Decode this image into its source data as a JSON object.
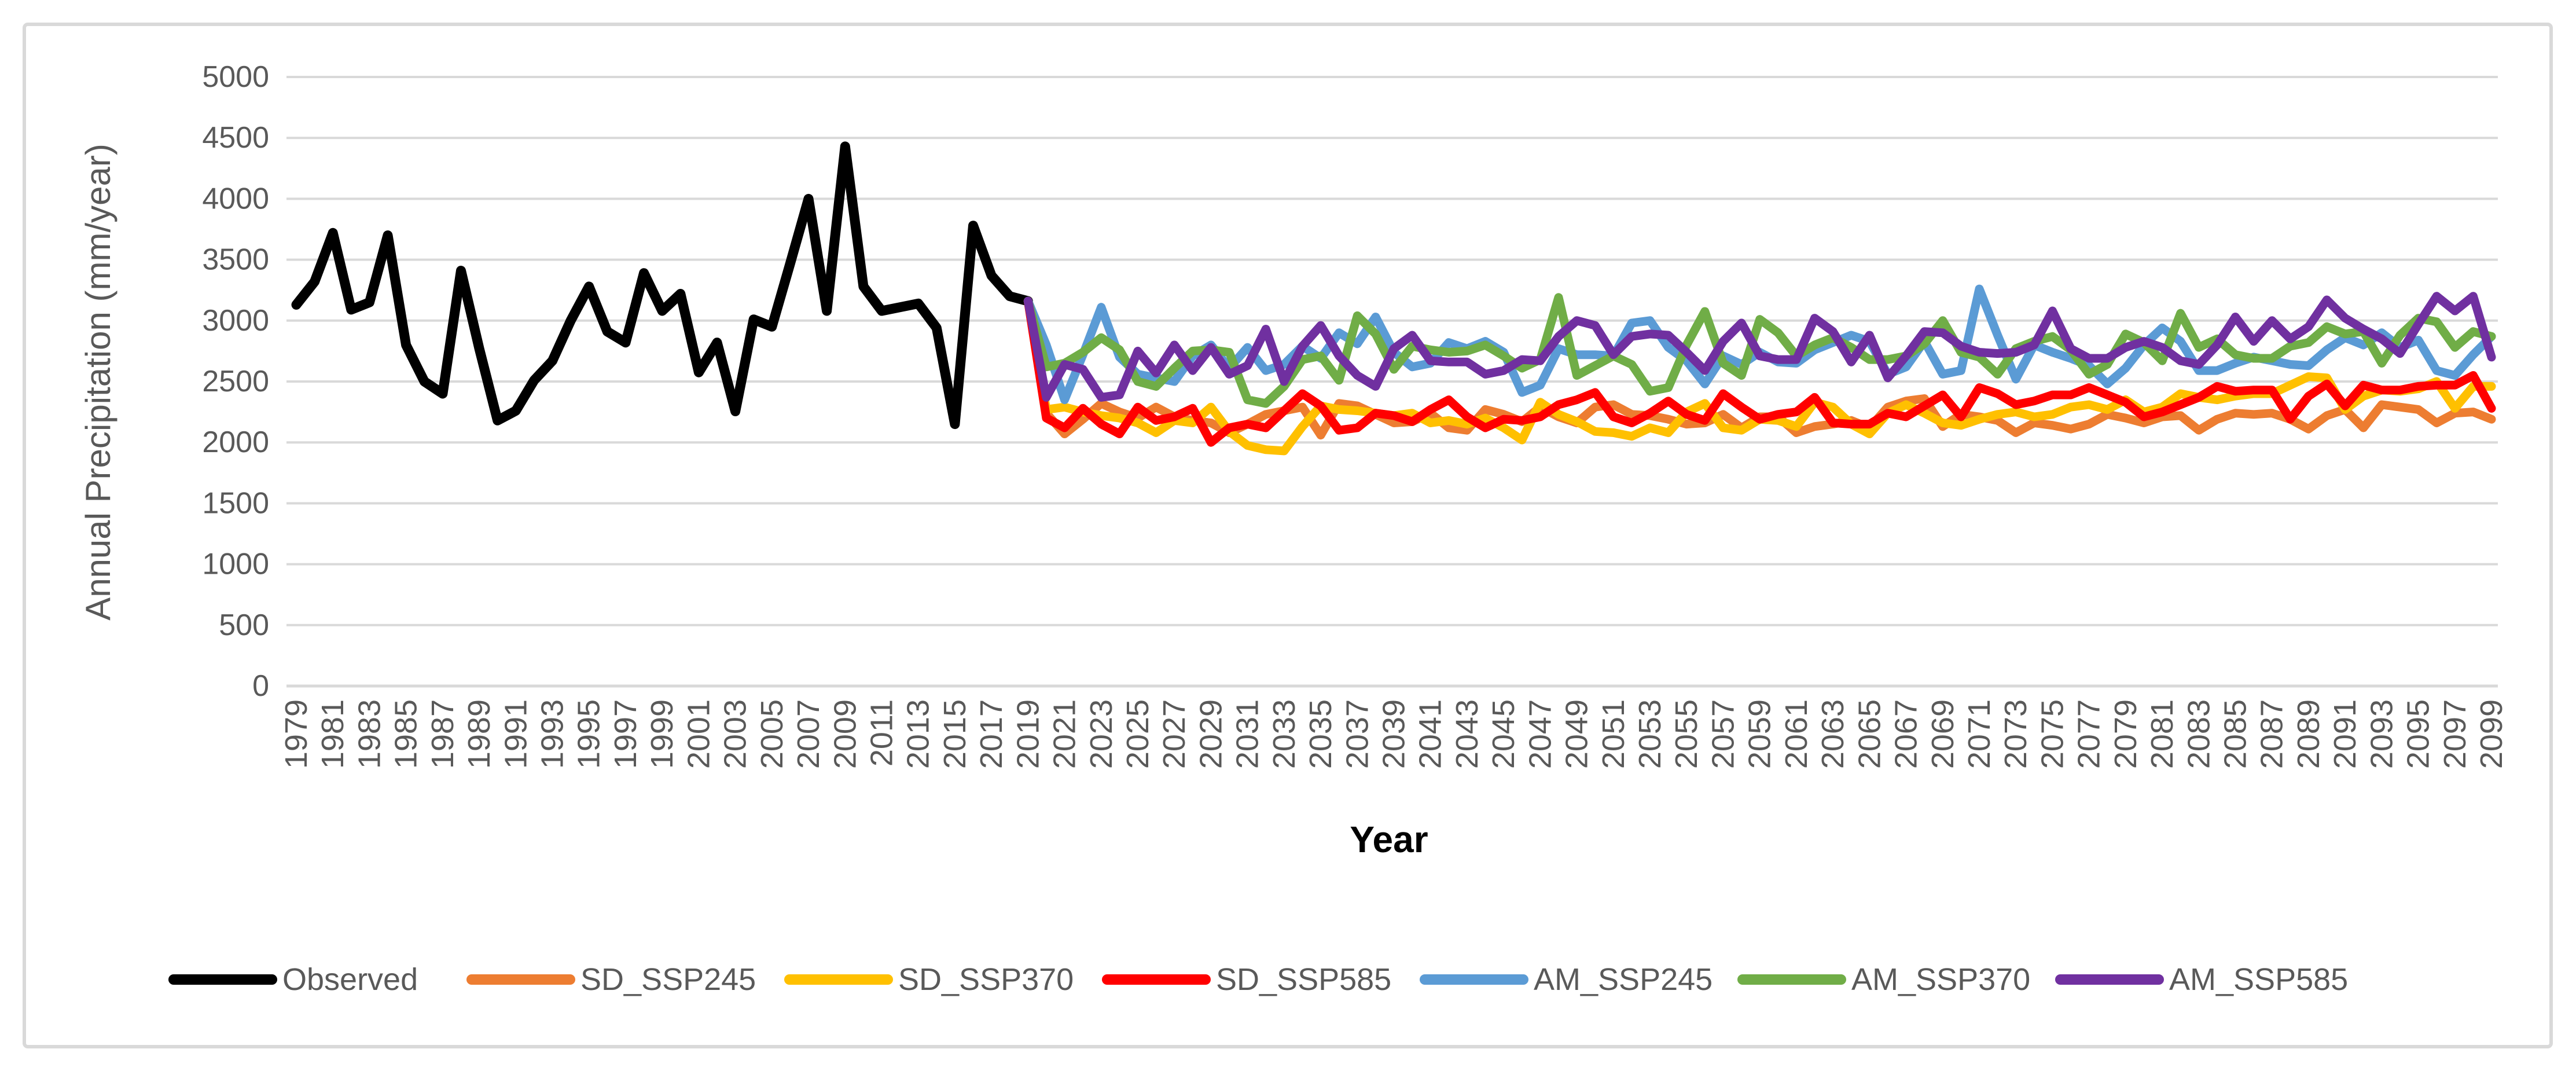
{
  "page": {
    "background": "#FFFFFF",
    "border_color": "#D9D9D9"
  },
  "chart_data": {
    "type": "line",
    "title": "",
    "xlabel": "Year",
    "ylabel": "Annual Precipitation (mm/year)",
    "ylim": [
      0,
      5000
    ],
    "grid": "horizontal-only",
    "grid_color": "#D9D9D9",
    "axis_text_color": "#595959",
    "legend_position": "bottom",
    "y_ticks": [
      0,
      500,
      1000,
      1500,
      2000,
      2500,
      3000,
      3500,
      4000,
      4500,
      5000
    ],
    "x_ticks": [
      1979,
      1981,
      1983,
      1985,
      1987,
      1989,
      1991,
      1993,
      1995,
      1997,
      1999,
      2001,
      2003,
      2005,
      2007,
      2009,
      2011,
      2013,
      2015,
      2017,
      2019,
      2021,
      2023,
      2025,
      2027,
      2029,
      2031,
      2033,
      2035,
      2037,
      2039,
      2041,
      2043,
      2045,
      2047,
      2049,
      2051,
      2053,
      2055,
      2057,
      2059,
      2061,
      2063,
      2065,
      2067,
      2069,
      2071,
      2073,
      2075,
      2077,
      2079,
      2081,
      2083,
      2085,
      2087,
      2089,
      2091,
      2093,
      2095,
      2097,
      2099
    ],
    "x_range": [
      1979,
      2099
    ],
    "series": [
      {
        "name": "Observed",
        "color": "#000000",
        "width": 17,
        "start_year": 1979,
        "values": [
          3130,
          3320,
          3720,
          3090,
          3150,
          3700,
          2800,
          2500,
          2400,
          3410,
          2770,
          2180,
          2260,
          2510,
          2670,
          3000,
          3280,
          2910,
          2820,
          3390,
          3080,
          3220,
          2575,
          2820,
          2255,
          3010,
          2950,
          3470,
          4000,
          3080,
          4430,
          3280,
          3080,
          3110,
          3140,
          2940,
          2150,
          3780,
          3370,
          3200,
          3160
        ]
      },
      {
        "name": "SD_SSP245",
        "color": "#ED7D31",
        "width": 15,
        "start_year": 2019,
        "values": [
          3160,
          2240,
          2070,
          2190,
          2320,
          2250,
          2200,
          2290,
          2210,
          2180,
          2160,
          2080,
          2150,
          2230,
          2260,
          2290,
          2060,
          2320,
          2300,
          2230,
          2160,
          2170,
          2240,
          2120,
          2100,
          2270,
          2230,
          2170,
          2290,
          2210,
          2160,
          2290,
          2310,
          2230,
          2220,
          2190,
          2150,
          2160,
          2230,
          2120,
          2210,
          2210,
          2080,
          2130,
          2150,
          2180,
          2120,
          2290,
          2340,
          2360,
          2130,
          2230,
          2210,
          2180,
          2080,
          2160,
          2140,
          2110,
          2150,
          2230,
          2200,
          2160,
          2210,
          2220,
          2100,
          2190,
          2240,
          2230,
          2240,
          2190,
          2110,
          2220,
          2270,
          2120,
          2310,
          2290,
          2270,
          2160,
          2240,
          2250,
          2190
        ]
      },
      {
        "name": "SD_SSP370",
        "color": "#FFC000",
        "width": 15,
        "start_year": 2019,
        "values": [
          3160,
          2270,
          2290,
          2250,
          2220,
          2200,
          2160,
          2080,
          2180,
          2160,
          2290,
          2090,
          1975,
          1940,
          1930,
          2130,
          2300,
          2270,
          2260,
          2240,
          2220,
          2240,
          2160,
          2180,
          2150,
          2200,
          2120,
          2020,
          2330,
          2230,
          2170,
          2090,
          2080,
          2050,
          2120,
          2080,
          2250,
          2320,
          2120,
          2100,
          2190,
          2180,
          2130,
          2330,
          2290,
          2150,
          2070,
          2240,
          2310,
          2240,
          2160,
          2140,
          2190,
          2230,
          2250,
          2210,
          2230,
          2290,
          2310,
          2270,
          2350,
          2250,
          2290,
          2400,
          2370,
          2350,
          2380,
          2400,
          2400,
          2470,
          2540,
          2530,
          2270,
          2380,
          2430,
          2420,
          2440,
          2500,
          2280,
          2460,
          2460
        ]
      },
      {
        "name": "SD_SSP585",
        "color": "#FF0000",
        "width": 15,
        "start_year": 2019,
        "values": [
          3160,
          2200,
          2120,
          2280,
          2150,
          2070,
          2290,
          2180,
          2210,
          2280,
          2000,
          2120,
          2150,
          2120,
          2260,
          2400,
          2300,
          2100,
          2120,
          2240,
          2220,
          2170,
          2270,
          2350,
          2210,
          2120,
          2190,
          2180,
          2210,
          2310,
          2350,
          2410,
          2210,
          2160,
          2240,
          2340,
          2230,
          2180,
          2400,
          2290,
          2190,
          2230,
          2250,
          2370,
          2160,
          2150,
          2150,
          2240,
          2210,
          2300,
          2390,
          2210,
          2450,
          2400,
          2310,
          2340,
          2390,
          2390,
          2450,
          2390,
          2330,
          2210,
          2250,
          2310,
          2370,
          2460,
          2420,
          2430,
          2430,
          2190,
          2380,
          2480,
          2300,
          2470,
          2430,
          2430,
          2460,
          2470,
          2470,
          2550,
          2280
        ]
      },
      {
        "name": "AM_SSP245",
        "color": "#5B9BD5",
        "width": 15,
        "start_year": 2019,
        "values": [
          3160,
          2800,
          2350,
          2720,
          3110,
          2700,
          2560,
          2530,
          2500,
          2710,
          2800,
          2610,
          2780,
          2590,
          2640,
          2790,
          2690,
          2900,
          2810,
          3030,
          2740,
          2620,
          2650,
          2820,
          2770,
          2830,
          2740,
          2410,
          2470,
          2770,
          2720,
          2720,
          2710,
          2980,
          3000,
          2780,
          2670,
          2480,
          2710,
          2640,
          2740,
          2660,
          2650,
          2760,
          2820,
          2880,
          2830,
          2560,
          2620,
          2830,
          2560,
          2590,
          3260,
          2880,
          2520,
          2800,
          2740,
          2690,
          2630,
          2480,
          2610,
          2800,
          2940,
          2830,
          2590,
          2590,
          2650,
          2700,
          2670,
          2640,
          2630,
          2760,
          2860,
          2800,
          2900,
          2780,
          2840,
          2590,
          2550,
          2720,
          2870
        ]
      },
      {
        "name": "AM_SSP370",
        "color": "#70AD47",
        "width": 15,
        "start_year": 2019,
        "values": [
          3160,
          2620,
          2650,
          2740,
          2860,
          2760,
          2500,
          2460,
          2610,
          2750,
          2760,
          2740,
          2350,
          2320,
          2460,
          2680,
          2710,
          2510,
          3040,
          2890,
          2600,
          2790,
          2760,
          2740,
          2750,
          2800,
          2710,
          2610,
          2680,
          3190,
          2550,
          2630,
          2710,
          2640,
          2420,
          2450,
          2800,
          3075,
          2650,
          2550,
          3010,
          2900,
          2710,
          2800,
          2860,
          2780,
          2680,
          2680,
          2710,
          2810,
          3000,
          2740,
          2700,
          2560,
          2770,
          2830,
          2870,
          2760,
          2560,
          2640,
          2890,
          2820,
          2670,
          3060,
          2780,
          2850,
          2720,
          2690,
          2690,
          2790,
          2820,
          2950,
          2890,
          2910,
          2650,
          2880,
          3020,
          2990,
          2780,
          2910,
          2870
        ]
      },
      {
        "name": "AM_SSP585",
        "color": "#7030A0",
        "width": 15,
        "start_year": 2019,
        "values": [
          3160,
          2370,
          2640,
          2600,
          2370,
          2390,
          2750,
          2570,
          2800,
          2590,
          2780,
          2560,
          2630,
          2930,
          2500,
          2790,
          2960,
          2710,
          2550,
          2460,
          2770,
          2880,
          2670,
          2660,
          2660,
          2560,
          2590,
          2680,
          2670,
          2870,
          3000,
          2960,
          2720,
          2870,
          2890,
          2880,
          2740,
          2590,
          2830,
          2980,
          2710,
          2680,
          2680,
          3020,
          2910,
          2660,
          2880,
          2530,
          2710,
          2910,
          2900,
          2790,
          2740,
          2730,
          2740,
          2800,
          3080,
          2770,
          2690,
          2690,
          2780,
          2830,
          2780,
          2670,
          2640,
          2800,
          3030,
          2830,
          3000,
          2850,
          2950,
          3170,
          3020,
          2930,
          2850,
          2730,
          2970,
          3200,
          3080,
          3200,
          2700
        ]
      }
    ]
  }
}
